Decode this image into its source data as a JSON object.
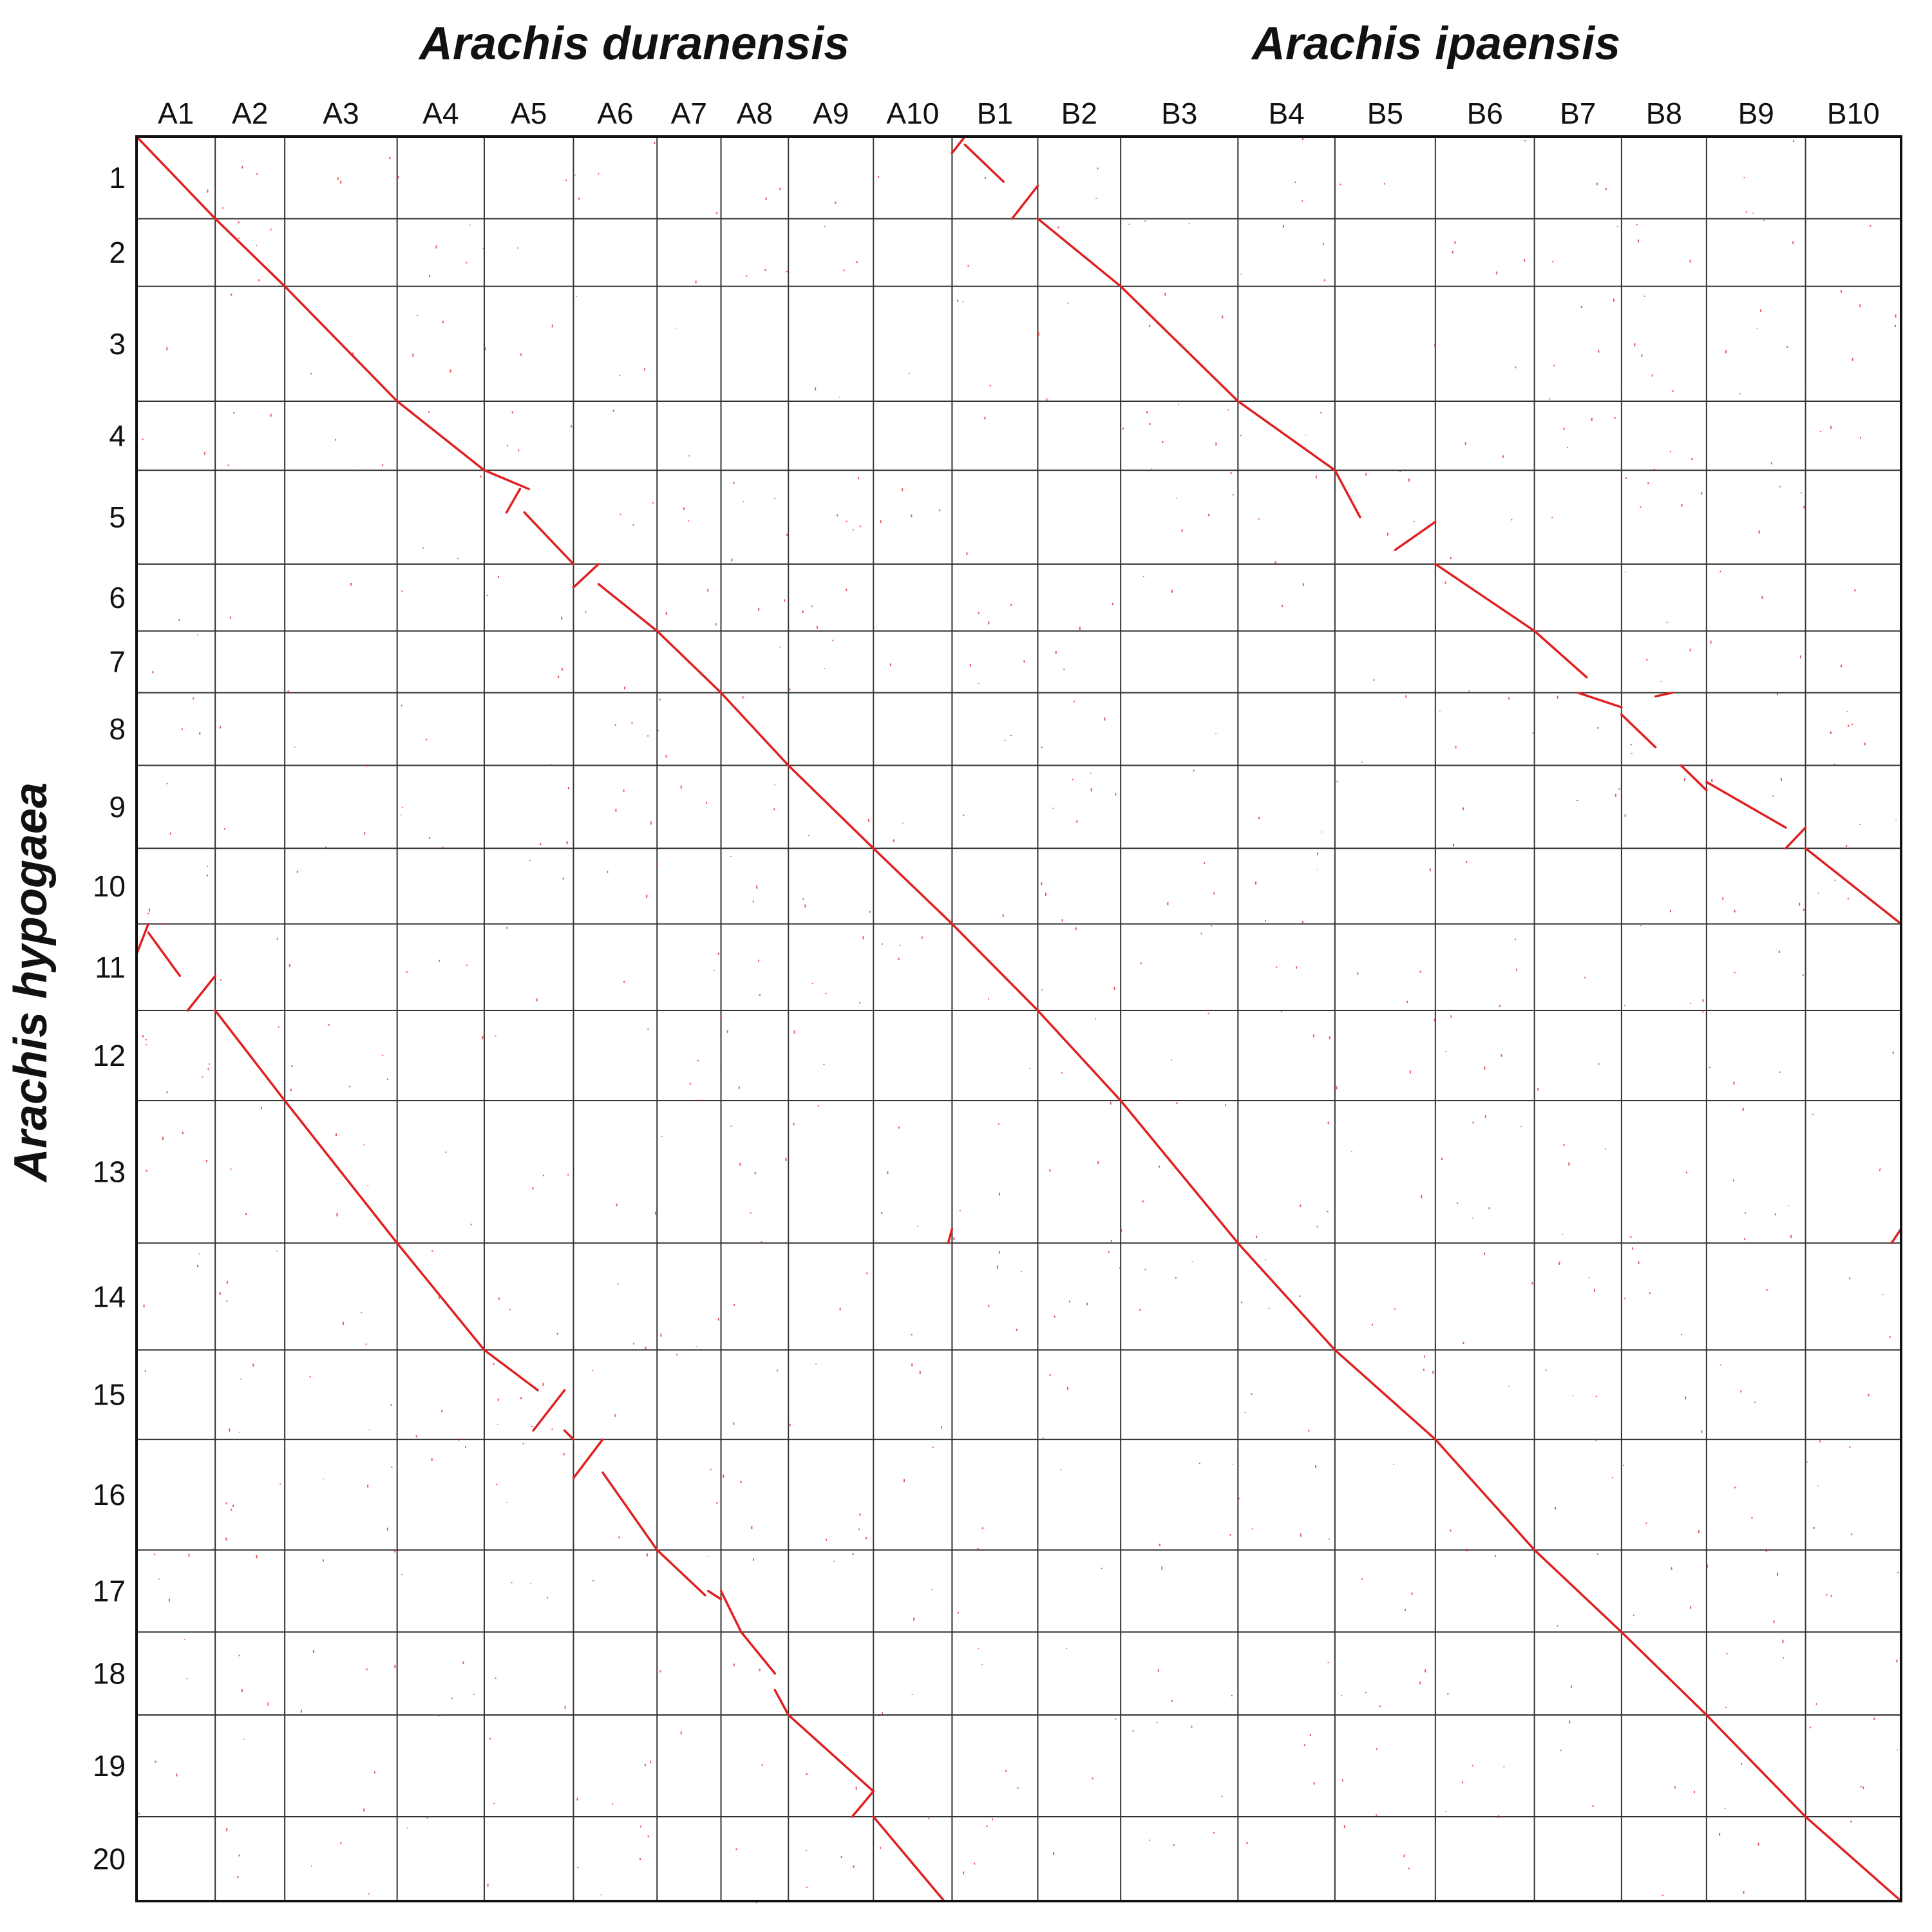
{
  "chart_data": {
    "type": "scatter",
    "subtype": "genome-synteny-dotplot",
    "title_top_left": "Arachis duranensis",
    "title_top_right": "Arachis ipaensis",
    "ylabel": "Arachis hypogaea",
    "grid": true,
    "point_color": "#e02020",
    "grid_color": "#333333",
    "x_chromosomes": [
      {
        "name": "A1",
        "size": 112
      },
      {
        "name": "A2",
        "size": 99
      },
      {
        "name": "A3",
        "size": 160
      },
      {
        "name": "A4",
        "size": 124
      },
      {
        "name": "A5",
        "size": 127
      },
      {
        "name": "A6",
        "size": 119
      },
      {
        "name": "A7",
        "size": 91
      },
      {
        "name": "A8",
        "size": 96
      },
      {
        "name": "A9",
        "size": 121
      },
      {
        "name": "A10",
        "size": 112
      },
      {
        "name": "B1",
        "size": 122
      },
      {
        "name": "B2",
        "size": 118
      },
      {
        "name": "B3",
        "size": 167
      },
      {
        "name": "B4",
        "size": 138
      },
      {
        "name": "B5",
        "size": 143
      },
      {
        "name": "B6",
        "size": 141
      },
      {
        "name": "B7",
        "size": 124
      },
      {
        "name": "B8",
        "size": 121
      },
      {
        "name": "B9",
        "size": 141
      },
      {
        "name": "B10",
        "size": 136
      }
    ],
    "y_chromosomes": [
      {
        "name": "1",
        "size": 113
      },
      {
        "name": "2",
        "size": 93
      },
      {
        "name": "3",
        "size": 158
      },
      {
        "name": "4",
        "size": 95
      },
      {
        "name": "5",
        "size": 129
      },
      {
        "name": "6",
        "size": 92
      },
      {
        "name": "7",
        "size": 85
      },
      {
        "name": "8",
        "size": 100
      },
      {
        "name": "9",
        "size": 114
      },
      {
        "name": "10",
        "size": 104
      },
      {
        "name": "11",
        "size": 119
      },
      {
        "name": "12",
        "size": 124
      },
      {
        "name": "13",
        "size": 196
      },
      {
        "name": "14",
        "size": 147
      },
      {
        "name": "15",
        "size": 123
      },
      {
        "name": "16",
        "size": 152
      },
      {
        "name": "17",
        "size": 113
      },
      {
        "name": "18",
        "size": 114
      },
      {
        "name": "19",
        "size": 140
      },
      {
        "name": "20",
        "size": 116
      }
    ],
    "note_units": "chromosome sizes in approximate Mb; segment coordinates are fractions of each chromosome length",
    "syntenic_blocks": [
      {
        "x_chr": "A1",
        "y_chr": "1",
        "x": [
          0,
          1
        ],
        "y": [
          0,
          1
        ]
      },
      {
        "x_chr": "A2",
        "y_chr": "2",
        "x": [
          0,
          1
        ],
        "y": [
          0,
          1
        ]
      },
      {
        "x_chr": "A3",
        "y_chr": "3",
        "x": [
          0,
          1
        ],
        "y": [
          0,
          1
        ]
      },
      {
        "x_chr": "A4",
        "y_chr": "4",
        "x": [
          0,
          1
        ],
        "y": [
          0,
          1
        ]
      },
      {
        "x_chr": "A5",
        "y_chr": "5",
        "x": [
          0,
          0.5
        ],
        "y": [
          0,
          0.2
        ]
      },
      {
        "x_chr": "A5",
        "y_chr": "5",
        "x": [
          0.4,
          0.25
        ],
        "y": [
          0.2,
          0.45
        ]
      },
      {
        "x_chr": "A5",
        "y_chr": "5",
        "x": [
          0.45,
          1
        ],
        "y": [
          0.45,
          1
        ]
      },
      {
        "x_chr": "A6",
        "y_chr": "6",
        "x": [
          0,
          0.3
        ],
        "y": [
          0.35,
          0
        ]
      },
      {
        "x_chr": "A6",
        "y_chr": "6",
        "x": [
          0.3,
          1
        ],
        "y": [
          0.3,
          1
        ]
      },
      {
        "x_chr": "A7",
        "y_chr": "7",
        "x": [
          0,
          1
        ],
        "y": [
          0,
          1
        ]
      },
      {
        "x_chr": "A8",
        "y_chr": "8",
        "x": [
          0,
          1
        ],
        "y": [
          0,
          1
        ]
      },
      {
        "x_chr": "A9",
        "y_chr": "9",
        "x": [
          0,
          1
        ],
        "y": [
          0,
          1
        ]
      },
      {
        "x_chr": "A10",
        "y_chr": "10",
        "x": [
          0,
          1
        ],
        "y": [
          0,
          1
        ]
      },
      {
        "x_chr": "B1",
        "y_chr": "1",
        "x": [
          0,
          0.15
        ],
        "y": [
          0.2,
          0
        ]
      },
      {
        "x_chr": "B1",
        "y_chr": "1",
        "x": [
          0.15,
          0.6
        ],
        "y": [
          0.1,
          0.55
        ]
      },
      {
        "x_chr": "B1",
        "y_chr": "1",
        "x": [
          0.7,
          1
        ],
        "y": [
          1,
          0.6
        ]
      },
      {
        "x_chr": "B2",
        "y_chr": "2",
        "x": [
          0,
          1
        ],
        "y": [
          0,
          1
        ]
      },
      {
        "x_chr": "B3",
        "y_chr": "3",
        "x": [
          0,
          1
        ],
        "y": [
          0,
          1
        ]
      },
      {
        "x_chr": "B4",
        "y_chr": "4",
        "x": [
          0,
          1
        ],
        "y": [
          0,
          1
        ]
      },
      {
        "x_chr": "B5",
        "y_chr": "5",
        "x": [
          0,
          0.25
        ],
        "y": [
          0,
          0.5
        ]
      },
      {
        "x_chr": "B5",
        "y_chr": "5",
        "x": [
          0.6,
          1
        ],
        "y": [
          0.85,
          0.55
        ]
      },
      {
        "x_chr": "B6",
        "y_chr": "6",
        "x": [
          0,
          1
        ],
        "y": [
          0,
          1
        ]
      },
      {
        "x_chr": "B7",
        "y_chr": "7",
        "x": [
          0,
          0.6
        ],
        "y": [
          0,
          0.75
        ]
      },
      {
        "x_chr": "B7",
        "y_chr": "8",
        "x": [
          0.5,
          1
        ],
        "y": [
          0,
          0.2
        ]
      },
      {
        "x_chr": "B8",
        "y_chr": "8",
        "x": [
          0,
          0.4
        ],
        "y": [
          0.3,
          0.75
        ]
      },
      {
        "x_chr": "B8",
        "y_chr": "8",
        "x": [
          0.4,
          0.6
        ],
        "y": [
          0.05,
          0
        ]
      },
      {
        "x_chr": "B8",
        "y_chr": "9",
        "x": [
          0.7,
          1
        ],
        "y": [
          0,
          0.3
        ]
      },
      {
        "x_chr": "B9",
        "y_chr": "9",
        "x": [
          0,
          0.8
        ],
        "y": [
          0.2,
          0.75
        ]
      },
      {
        "x_chr": "B9",
        "y_chr": "9",
        "x": [
          0.8,
          1
        ],
        "y": [
          1,
          0.75
        ]
      },
      {
        "x_chr": "B10",
        "y_chr": "10",
        "x": [
          0,
          1
        ],
        "y": [
          0,
          1
        ]
      },
      {
        "x_chr": "A1",
        "y_chr": "11",
        "x": [
          0,
          0.15
        ],
        "y": [
          0.35,
          0
        ]
      },
      {
        "x_chr": "A1",
        "y_chr": "11",
        "x": [
          0.15,
          0.55
        ],
        "y": [
          0.1,
          0.6
        ]
      },
      {
        "x_chr": "A1",
        "y_chr": "11",
        "x": [
          0.65,
          1
        ],
        "y": [
          1,
          0.6
        ]
      },
      {
        "x_chr": "A2",
        "y_chr": "12",
        "x": [
          0,
          1
        ],
        "y": [
          0,
          1
        ]
      },
      {
        "x_chr": "A3",
        "y_chr": "13",
        "x": [
          0,
          1
        ],
        "y": [
          0,
          1
        ]
      },
      {
        "x_chr": "A4",
        "y_chr": "14",
        "x": [
          0,
          1
        ],
        "y": [
          0,
          1
        ]
      },
      {
        "x_chr": "A5",
        "y_chr": "15",
        "x": [
          0,
          0.6
        ],
        "y": [
          0,
          0.45
        ]
      },
      {
        "x_chr": "A5",
        "y_chr": "15",
        "x": [
          0.55,
          0.9
        ],
        "y": [
          0.9,
          0.45
        ]
      },
      {
        "x_chr": "A5",
        "y_chr": "15",
        "x": [
          0.9,
          1
        ],
        "y": [
          0.9,
          1
        ]
      },
      {
        "x_chr": "A6",
        "y_chr": "16",
        "x": [
          0,
          0.35
        ],
        "y": [
          0.35,
          0
        ]
      },
      {
        "x_chr": "A6",
        "y_chr": "16",
        "x": [
          0.35,
          1
        ],
        "y": [
          0.3,
          1
        ]
      },
      {
        "x_chr": "A7",
        "y_chr": "17",
        "x": [
          0,
          0.75
        ],
        "y": [
          0,
          0.55
        ]
      },
      {
        "x_chr": "A7",
        "y_chr": "17",
        "x": [
          0.8,
          1
        ],
        "y": [
          0.5,
          0.6
        ]
      },
      {
        "x_chr": "A8",
        "y_chr": "17",
        "x": [
          0,
          0.3
        ],
        "y": [
          0.5,
          1
        ]
      },
      {
        "x_chr": "A8",
        "y_chr": "18",
        "x": [
          0.3,
          0.8
        ],
        "y": [
          0,
          0.5
        ]
      },
      {
        "x_chr": "A8",
        "y_chr": "18",
        "x": [
          0.8,
          1
        ],
        "y": [
          0.7,
          1
        ]
      },
      {
        "x_chr": "A9",
        "y_chr": "19",
        "x": [
          0,
          1
        ],
        "y": [
          0,
          0.75
        ]
      },
      {
        "x_chr": "A9",
        "y_chr": "19",
        "x": [
          0.75,
          1
        ],
        "y": [
          1,
          0.75
        ]
      },
      {
        "x_chr": "A10",
        "y_chr": "20",
        "x": [
          0,
          0.9
        ],
        "y": [
          0,
          1
        ]
      },
      {
        "x_chr": "A10",
        "y_chr": "13",
        "x": [
          0.95,
          1
        ],
        "y": [
          1,
          0.9
        ]
      },
      {
        "x_chr": "B1",
        "y_chr": "11",
        "x": [
          0,
          1
        ],
        "y": [
          0,
          1
        ]
      },
      {
        "x_chr": "B2",
        "y_chr": "12",
        "x": [
          0,
          1
        ],
        "y": [
          0,
          1
        ]
      },
      {
        "x_chr": "B3",
        "y_chr": "13",
        "x": [
          0,
          1
        ],
        "y": [
          0,
          1
        ]
      },
      {
        "x_chr": "B4",
        "y_chr": "14",
        "x": [
          0,
          1
        ],
        "y": [
          0,
          1
        ]
      },
      {
        "x_chr": "B5",
        "y_chr": "15",
        "x": [
          0,
          1
        ],
        "y": [
          0,
          1
        ]
      },
      {
        "x_chr": "B6",
        "y_chr": "16",
        "x": [
          0,
          1
        ],
        "y": [
          0,
          1
        ]
      },
      {
        "x_chr": "B7",
        "y_chr": "17",
        "x": [
          0,
          1
        ],
        "y": [
          0,
          1
        ]
      },
      {
        "x_chr": "B8",
        "y_chr": "18",
        "x": [
          0,
          1
        ],
        "y": [
          0,
          1
        ]
      },
      {
        "x_chr": "B9",
        "y_chr": "19",
        "x": [
          0,
          1
        ],
        "y": [
          0,
          1
        ]
      },
      {
        "x_chr": "B10",
        "y_chr": "20",
        "x": [
          0,
          1
        ],
        "y": [
          0,
          1
        ]
      },
      {
        "x_chr": "B10",
        "y_chr": "13",
        "x": [
          0.9,
          1
        ],
        "y": [
          1,
          0.9
        ]
      }
    ]
  }
}
